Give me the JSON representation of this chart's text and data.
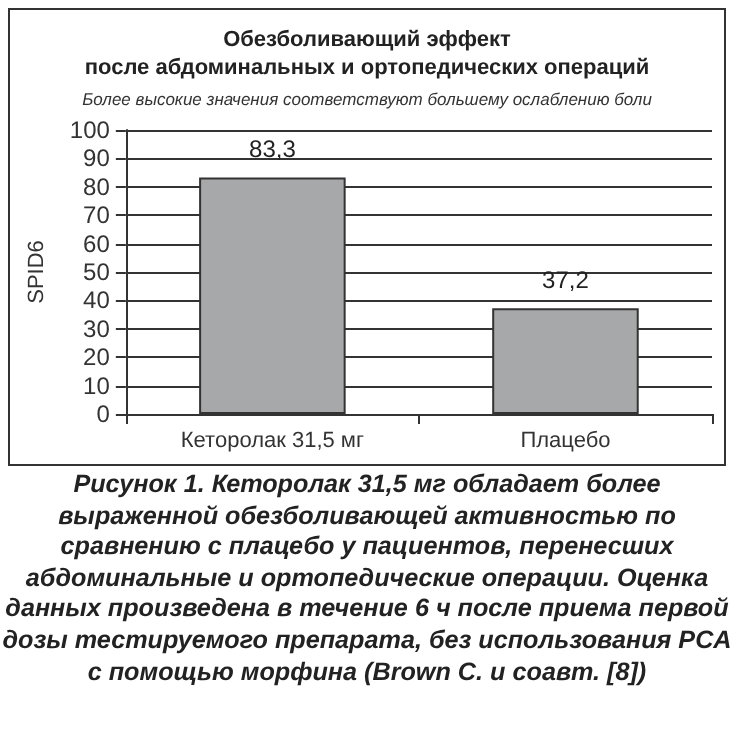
{
  "chart_data": {
    "type": "bar",
    "title": "Обезболивающий эффект\nпосле абдоминальных и ортопедических операций",
    "subtitle": "Более высокие значения соответствуют большему ослаблению боли",
    "ylabel": "SPID6",
    "categories": [
      "Кеторолак 31,5 мг",
      "Плацебо"
    ],
    "values": [
      83.3,
      37.2
    ],
    "color": "#a7a8aa",
    "value_labels": [
      "83,3",
      "37,2"
    ],
    "ylim": [
      0,
      100
    ],
    "yticks": [
      0,
      10,
      20,
      30,
      40,
      50,
      60,
      70,
      80,
      90,
      100
    ],
    "grid": "y",
    "annotations": [
      "Рисунок 1. Кеторолак 31,5 мг обладает более выраженной обезболивающей активностью по сравнению с плацебо у пациентов, перенесших абдоминальные и ортопедические операции. Оценка данных произведена в течение 6 ч после приема первой дозы тестируемого препарата, без использования PCA с помощью морфина (Brown C. и соавт. [8])"
    ]
  }
}
